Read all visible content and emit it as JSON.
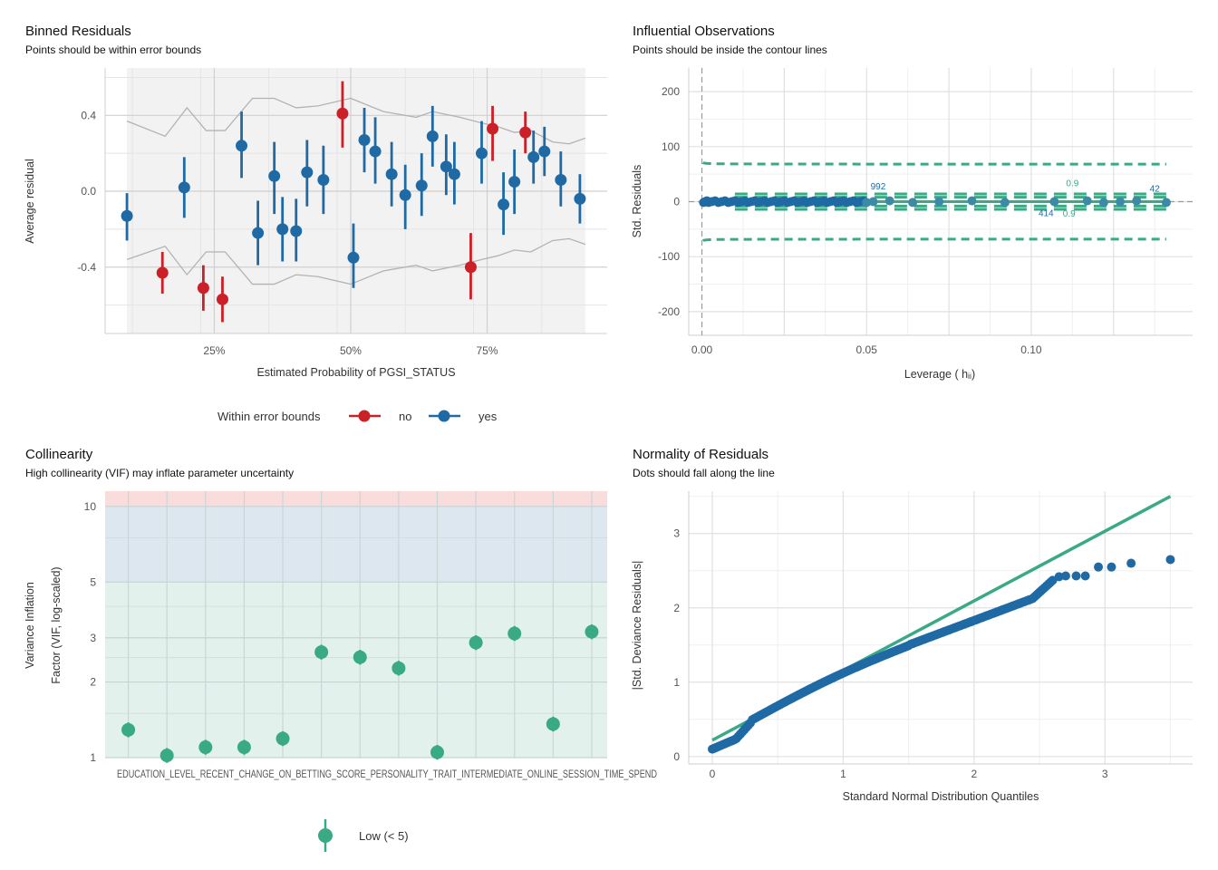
{
  "colors": {
    "red": "#cb2027",
    "blue": "#1f6aa5",
    "green": "#3aaa85",
    "grid": "#e6e6e6",
    "band": "#f2f2f2",
    "bound": "#b3b3b3"
  },
  "chart_data": [
    {
      "type": "scatter",
      "title": "Binned Residuals",
      "subtitle": "Points should be within error bounds",
      "xlabel": "Estimated Probability of PGSI_STATUS",
      "ylabel": "Average residual",
      "xlim": [
        0.05,
        0.97
      ],
      "ylim": [
        -0.75,
        0.65
      ],
      "x_ticks": [
        {
          "value": 0.25,
          "label": "25%"
        },
        {
          "value": 0.5,
          "label": "50%"
        },
        {
          "value": 0.75,
          "label": "75%"
        }
      ],
      "y_ticks": [
        {
          "value": 0.4,
          "label": "0.4"
        },
        {
          "value": 0.0,
          "label": "0.0"
        },
        {
          "value": -0.4,
          "label": "-0.4"
        }
      ],
      "legend": {
        "title": "Within error bounds",
        "items": [
          {
            "label": "no",
            "color": "#cb2027"
          },
          {
            "label": "yes",
            "color": "#1f6aa5"
          }
        ]
      },
      "bounds_upper": [
        [
          0.09,
          0.37
        ],
        [
          0.16,
          0.29
        ],
        [
          0.2,
          0.44
        ],
        [
          0.235,
          0.32
        ],
        [
          0.27,
          0.32
        ],
        [
          0.32,
          0.49
        ],
        [
          0.36,
          0.49
        ],
        [
          0.4,
          0.44
        ],
        [
          0.44,
          0.45
        ],
        [
          0.5,
          0.49
        ],
        [
          0.56,
          0.42
        ],
        [
          0.62,
          0.39
        ],
        [
          0.65,
          0.42
        ],
        [
          0.7,
          0.39
        ],
        [
          0.74,
          0.36
        ],
        [
          0.77,
          0.34
        ],
        [
          0.8,
          0.31
        ],
        [
          0.83,
          0.32
        ],
        [
          0.87,
          0.26
        ],
        [
          0.9,
          0.25
        ],
        [
          0.93,
          0.28
        ]
      ],
      "bounds_lower": [
        [
          0.09,
          -0.36
        ],
        [
          0.16,
          -0.29
        ],
        [
          0.2,
          -0.44
        ],
        [
          0.235,
          -0.32
        ],
        [
          0.27,
          -0.32
        ],
        [
          0.32,
          -0.49
        ],
        [
          0.36,
          -0.49
        ],
        [
          0.4,
          -0.44
        ],
        [
          0.44,
          -0.45
        ],
        [
          0.5,
          -0.49
        ],
        [
          0.56,
          -0.42
        ],
        [
          0.62,
          -0.39
        ],
        [
          0.65,
          -0.42
        ],
        [
          0.7,
          -0.39
        ],
        [
          0.74,
          -0.36
        ],
        [
          0.77,
          -0.34
        ],
        [
          0.8,
          -0.31
        ],
        [
          0.83,
          -0.32
        ],
        [
          0.87,
          -0.26
        ],
        [
          0.9,
          -0.25
        ],
        [
          0.93,
          -0.28
        ]
      ],
      "points": [
        {
          "x": 0.09,
          "y": -0.13,
          "lo": -0.26,
          "hi": -0.01,
          "ok": true
        },
        {
          "x": 0.155,
          "y": -0.43,
          "lo": -0.54,
          "hi": -0.32,
          "ok": false
        },
        {
          "x": 0.195,
          "y": 0.02,
          "lo": -0.14,
          "hi": 0.18,
          "ok": true
        },
        {
          "x": 0.23,
          "y": -0.51,
          "lo": -0.63,
          "hi": -0.39,
          "ok": false
        },
        {
          "x": 0.265,
          "y": -0.57,
          "lo": -0.69,
          "hi": -0.45,
          "ok": false
        },
        {
          "x": 0.3,
          "y": 0.24,
          "lo": 0.07,
          "hi": 0.42,
          "ok": true
        },
        {
          "x": 0.33,
          "y": -0.22,
          "lo": -0.39,
          "hi": -0.05,
          "ok": true
        },
        {
          "x": 0.36,
          "y": 0.08,
          "lo": -0.12,
          "hi": 0.26,
          "ok": true
        },
        {
          "x": 0.375,
          "y": -0.2,
          "lo": -0.37,
          "hi": -0.03,
          "ok": true
        },
        {
          "x": 0.4,
          "y": -0.21,
          "lo": -0.37,
          "hi": -0.04,
          "ok": true
        },
        {
          "x": 0.42,
          "y": 0.1,
          "lo": -0.08,
          "hi": 0.27,
          "ok": true
        },
        {
          "x": 0.45,
          "y": 0.06,
          "lo": -0.12,
          "hi": 0.24,
          "ok": true
        },
        {
          "x": 0.485,
          "y": 0.41,
          "lo": 0.23,
          "hi": 0.58,
          "ok": false
        },
        {
          "x": 0.505,
          "y": -0.35,
          "lo": -0.51,
          "hi": -0.17,
          "ok": true
        },
        {
          "x": 0.525,
          "y": 0.27,
          "lo": 0.1,
          "hi": 0.44,
          "ok": true
        },
        {
          "x": 0.545,
          "y": 0.21,
          "lo": 0.04,
          "hi": 0.39,
          "ok": true
        },
        {
          "x": 0.575,
          "y": 0.09,
          "lo": -0.08,
          "hi": 0.26,
          "ok": true
        },
        {
          "x": 0.6,
          "y": -0.02,
          "lo": -0.2,
          "hi": 0.14,
          "ok": true
        },
        {
          "x": 0.63,
          "y": 0.03,
          "lo": -0.13,
          "hi": 0.2,
          "ok": true
        },
        {
          "x": 0.65,
          "y": 0.29,
          "lo": 0.13,
          "hi": 0.45,
          "ok": true
        },
        {
          "x": 0.675,
          "y": 0.13,
          "lo": -0.02,
          "hi": 0.3,
          "ok": true
        },
        {
          "x": 0.69,
          "y": 0.09,
          "lo": -0.07,
          "hi": 0.26,
          "ok": true
        },
        {
          "x": 0.72,
          "y": -0.4,
          "lo": -0.57,
          "hi": -0.22,
          "ok": false
        },
        {
          "x": 0.74,
          "y": 0.2,
          "lo": 0.04,
          "hi": 0.37,
          "ok": true
        },
        {
          "x": 0.76,
          "y": 0.33,
          "lo": 0.16,
          "hi": 0.45,
          "ok": false
        },
        {
          "x": 0.78,
          "y": -0.07,
          "lo": -0.23,
          "hi": 0.1,
          "ok": true
        },
        {
          "x": 0.8,
          "y": 0.05,
          "lo": -0.12,
          "hi": 0.22,
          "ok": true
        },
        {
          "x": 0.82,
          "y": 0.31,
          "lo": 0.2,
          "hi": 0.42,
          "ok": false
        },
        {
          "x": 0.835,
          "y": 0.18,
          "lo": 0.04,
          "hi": 0.32,
          "ok": true
        },
        {
          "x": 0.855,
          "y": 0.21,
          "lo": 0.08,
          "hi": 0.34,
          "ok": true
        },
        {
          "x": 0.885,
          "y": 0.06,
          "lo": -0.08,
          "hi": 0.21,
          "ok": true
        },
        {
          "x": 0.92,
          "y": -0.04,
          "lo": -0.17,
          "hi": 0.09,
          "ok": true
        }
      ]
    },
    {
      "type": "scatter",
      "title": "Influential Observations",
      "subtitle": "Points should be inside the contour lines",
      "xlabel": "Leverage ( hᵢᵢ)",
      "ylabel": "Std. Residuals",
      "xlim": [
        -0.004,
        0.149
      ],
      "ylim": [
        -243,
        243
      ],
      "x_ticks": [
        {
          "value": 0.0,
          "label": "0.00"
        },
        {
          "value": 0.05,
          "label": "0.05"
        },
        {
          "value": 0.1,
          "label": "0.10"
        }
      ],
      "y_ticks": [
        {
          "value": 200,
          "label": "200"
        },
        {
          "value": 100,
          "label": "100"
        },
        {
          "value": 0,
          "label": "0"
        },
        {
          "value": -100,
          "label": "-100"
        },
        {
          "value": -200,
          "label": "-200"
        }
      ],
      "leverage": [
        0.0005,
        0.001,
        0.0015,
        0.002,
        0.003,
        0.004,
        0.005,
        0.006,
        0.007,
        0.008,
        0.009,
        0.01,
        0.011,
        0.012,
        0.013,
        0.014,
        0.015,
        0.016,
        0.017,
        0.018,
        0.019,
        0.02,
        0.021,
        0.022,
        0.023,
        0.024,
        0.025,
        0.026,
        0.027,
        0.028,
        0.029,
        0.03,
        0.031,
        0.032,
        0.033,
        0.034,
        0.035,
        0.036,
        0.037,
        0.038,
        0.039,
        0.04,
        0.041,
        0.042,
        0.043,
        0.044,
        0.045,
        0.046,
        0.047,
        0.048,
        0.049,
        0.05,
        0.052,
        0.057,
        0.064,
        0.072,
        0.082,
        0.092,
        0.107,
        0.117,
        0.122,
        0.127,
        0.132,
        0.141
      ],
      "contour_levels": [
        0.5,
        0.9
      ],
      "labels": [
        {
          "text": "992",
          "x": 0.0535,
          "y": 22
        },
        {
          "text": "0.9",
          "x": 0.1125,
          "y": 28
        },
        {
          "text": "414",
          "x": 0.1045,
          "y": -26
        },
        {
          "text": "0.9",
          "x": 0.1115,
          "y": -27
        },
        {
          "text": "42",
          "x": 0.1375,
          "y": 18
        }
      ]
    },
    {
      "type": "scatter",
      "title": "Collinearity",
      "subtitle": "High collinearity (VIF) may inflate parameter uncertainty",
      "xlabel": "",
      "ylabel_line1": "Variance Inflation",
      "ylabel_line2": "Factor (VIF, log-scaled)",
      "ylim": [
        1,
        11.5
      ],
      "y_ticks": [
        {
          "value": 10,
          "label": "10"
        },
        {
          "value": 5,
          "label": "5"
        },
        {
          "value": 3,
          "label": "3"
        },
        {
          "value": 2,
          "label": "2"
        },
        {
          "value": 1,
          "label": "1"
        }
      ],
      "x_tick_overlap_text": "EDUCATION_LEVEL_RECENT_CHANGE_ON_BETTING_SCORE_PERSONALITY_TRAIT_INTERMEDIATE_ONLINE_SESSION_TIME_SPEND",
      "vif_values": [
        1.29,
        1.02,
        1.1,
        1.1,
        1.19,
        2.63,
        2.51,
        2.27,
        1.05,
        2.87,
        3.12,
        1.36,
        3.17
      ],
      "legend": {
        "items": [
          {
            "label": "Low (< 5)",
            "color": "#3aaa85"
          }
        ]
      }
    },
    {
      "type": "scatter",
      "title": "Normality of Residuals",
      "subtitle": "Dots should fall along the line",
      "xlabel": "Standard Normal Distribution Quantiles",
      "ylabel": "|Std. Deviance Residuals|",
      "xlim": [
        -0.18,
        3.67
      ],
      "ylim": [
        -0.1,
        3.57
      ],
      "x_ticks": [
        {
          "value": 0,
          "label": "0"
        },
        {
          "value": 1,
          "label": "1"
        },
        {
          "value": 2,
          "label": "2"
        },
        {
          "value": 3,
          "label": "3"
        }
      ],
      "y_ticks": [
        {
          "value": 3,
          "label": "3"
        },
        {
          "value": 2,
          "label": "2"
        },
        {
          "value": 1,
          "label": "1"
        },
        {
          "value": 0,
          "label": "0"
        }
      ],
      "reference_line": [
        [
          0,
          0.22
        ],
        [
          3.5,
          3.5
        ]
      ],
      "qq_tail": [
        [
          2.65,
          2.42
        ],
        [
          2.7,
          2.43
        ],
        [
          2.78,
          2.43
        ],
        [
          2.85,
          2.43
        ],
        [
          2.95,
          2.55
        ],
        [
          3.05,
          2.55
        ],
        [
          3.2,
          2.6
        ],
        [
          3.5,
          2.65
        ]
      ]
    }
  ]
}
